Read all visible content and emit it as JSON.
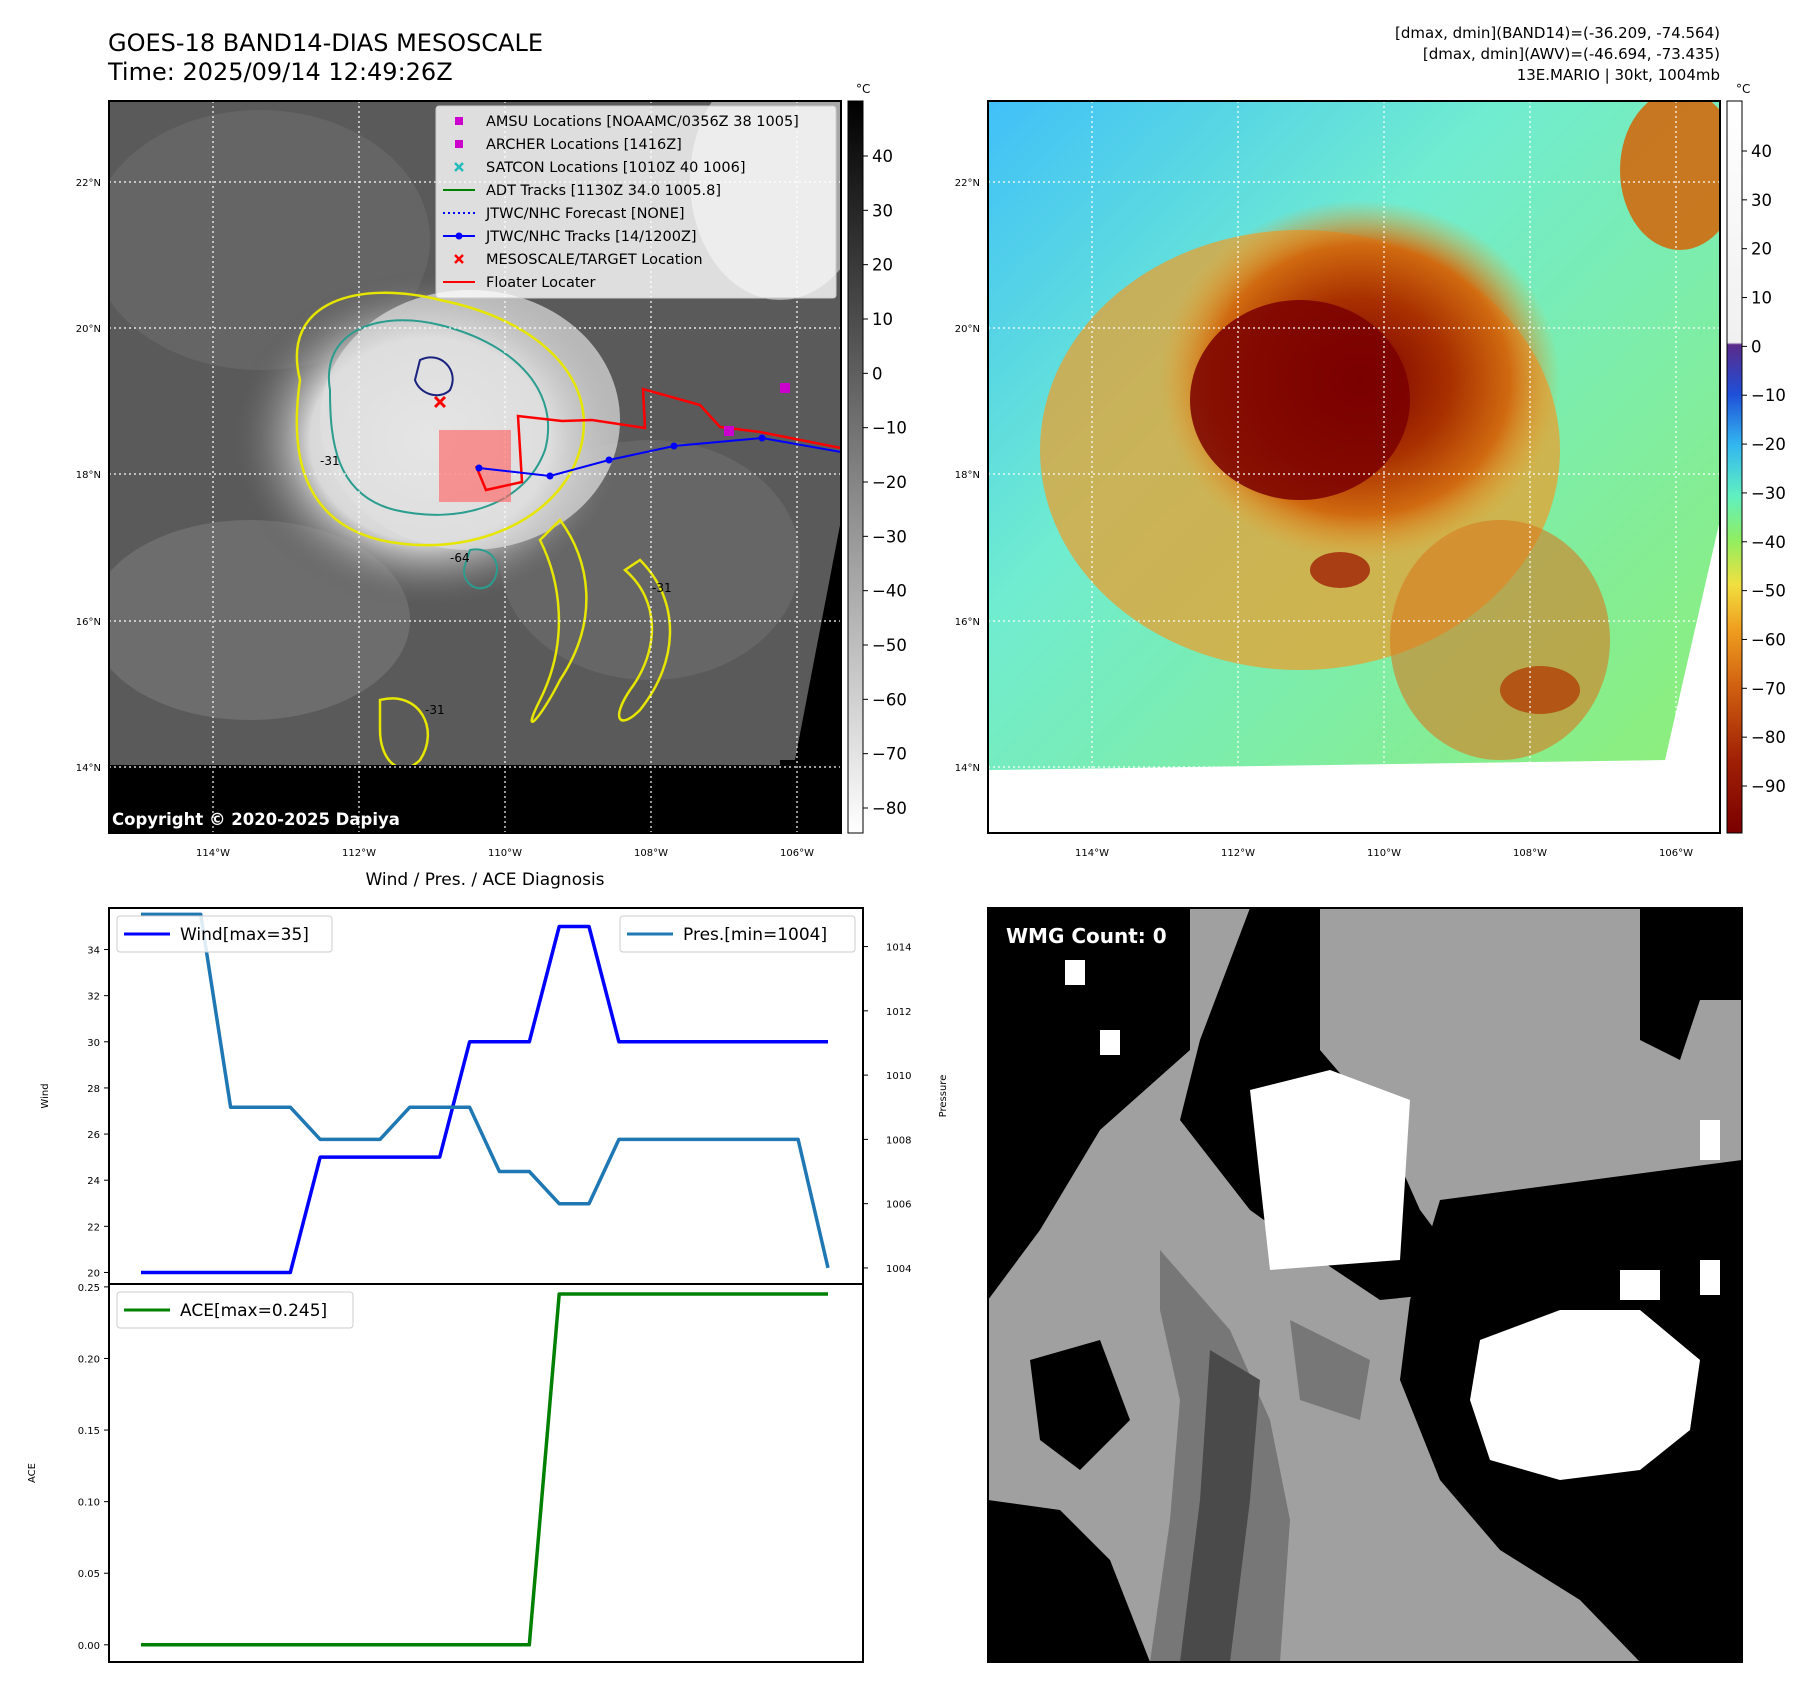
{
  "header": {
    "title_line1": "GOES-18 BAND14-DIAS MESOSCALE",
    "title_line2": "Time: 2025/09/14 12:49:26Z",
    "info_line1": "[dmax, dmin](BAND14)=(-36.209, -74.564)",
    "info_line2": "[dmax, dmin](AWV)=(-46.694, -73.435)",
    "info_line3": "13E.MARIO | 30kt, 1004mb"
  },
  "map_left": {
    "copyright": "Copyright © 2020-2025 Dapiya",
    "lat_labels": [
      "22°N",
      "20°N",
      "18°N",
      "16°N",
      "14°N"
    ],
    "lon_labels": [
      "114°W",
      "112°W",
      "110°W",
      "108°W",
      "106°W"
    ],
    "contour_labels": [
      "-64",
      "-31",
      "-31",
      "-31"
    ],
    "legend": [
      {
        "label": "AMSU Locations [NOAAMC/0356Z 38 1005]",
        "color": "#cc00cc",
        "marker": "square"
      },
      {
        "label": "ARCHER Locations [1416Z]",
        "color": "#cc00cc",
        "marker": "square"
      },
      {
        "label": "SATCON Locations [1010Z 40 1006]",
        "color": "#22bbbb",
        "marker": "x"
      },
      {
        "label": "ADT Tracks [1130Z 34.0 1005.8]",
        "color": "#008000",
        "marker": "line"
      },
      {
        "label": "JTWC/NHC Forecast [NONE]",
        "color": "#0000ff",
        "marker": "dotted"
      },
      {
        "label": "JTWC/NHC Tracks [14/1200Z]",
        "color": "#0000ff",
        "marker": "line-dot"
      },
      {
        "label": "MESOSCALE/TARGET Location",
        "color": "#ff0000",
        "marker": "x"
      },
      {
        "label": "Floater Locater",
        "color": "#ff0000",
        "marker": "line"
      }
    ],
    "colorbar": {
      "unit": "°C",
      "ticks": [
        "40",
        "30",
        "20",
        "10",
        "0",
        "−10",
        "−20",
        "−30",
        "−40",
        "−50",
        "−60",
        "−70",
        "−80"
      ]
    }
  },
  "map_right": {
    "lat_labels": [
      "22°N",
      "20°N",
      "18°N",
      "16°N",
      "14°N"
    ],
    "lon_labels": [
      "114°W",
      "112°W",
      "110°W",
      "108°W",
      "106°W"
    ],
    "colorbar": {
      "unit": "°C",
      "ticks": [
        "40",
        "30",
        "20",
        "10",
        "0",
        "−10",
        "−20",
        "−30",
        "−40",
        "−50",
        "−60",
        "−70",
        "−80",
        "−90"
      ]
    }
  },
  "wmg_panel": {
    "label": "WMG Count: 0"
  },
  "chart_data": [
    {
      "type": "line",
      "title": "Wind / Pres. / ACE Diagnosis",
      "ylabel": "Wind",
      "ylim": [
        19.5,
        35.8
      ],
      "yticks": [
        20,
        22,
        24,
        26,
        28,
        30,
        32,
        34
      ],
      "series": [
        {
          "name": "Wind[max=35]",
          "color": "#0000ff",
          "values": [
            20,
            20,
            20,
            20,
            20,
            20,
            25,
            25,
            25,
            25,
            25,
            30,
            30,
            30,
            35,
            35,
            30,
            30,
            30,
            30,
            30,
            30,
            30,
            30
          ]
        }
      ]
    },
    {
      "type": "line",
      "ylabel": "Pressure",
      "ylim": [
        1003.5,
        1015.2
      ],
      "yticks": [
        1004,
        1006,
        1008,
        1010,
        1012,
        1014
      ],
      "series": [
        {
          "name": "Pres.[min=1004]",
          "color": "#1f77b4",
          "values": [
            1015,
            1015,
            1015,
            1009,
            1009,
            1009,
            1008,
            1008,
            1008,
            1009,
            1009,
            1009,
            1007,
            1007,
            1006,
            1006,
            1008,
            1008,
            1008,
            1008,
            1008,
            1008,
            1008,
            1004
          ]
        }
      ]
    },
    {
      "type": "line",
      "ylabel": "ACE",
      "ylim": [
        -0.012,
        0.252
      ],
      "yticks": [
        "0.00",
        "0.05",
        "0.10",
        "0.15",
        "0.20",
        "0.25"
      ],
      "series": [
        {
          "name": "ACE[max=0.245]",
          "color": "#008000",
          "values": [
            0,
            0,
            0,
            0,
            0,
            0,
            0,
            0,
            0,
            0,
            0,
            0,
            0,
            0,
            0.245,
            0.245,
            0.245,
            0.245,
            0.245,
            0.245,
            0.245,
            0.245,
            0.245,
            0.245
          ]
        }
      ]
    }
  ]
}
